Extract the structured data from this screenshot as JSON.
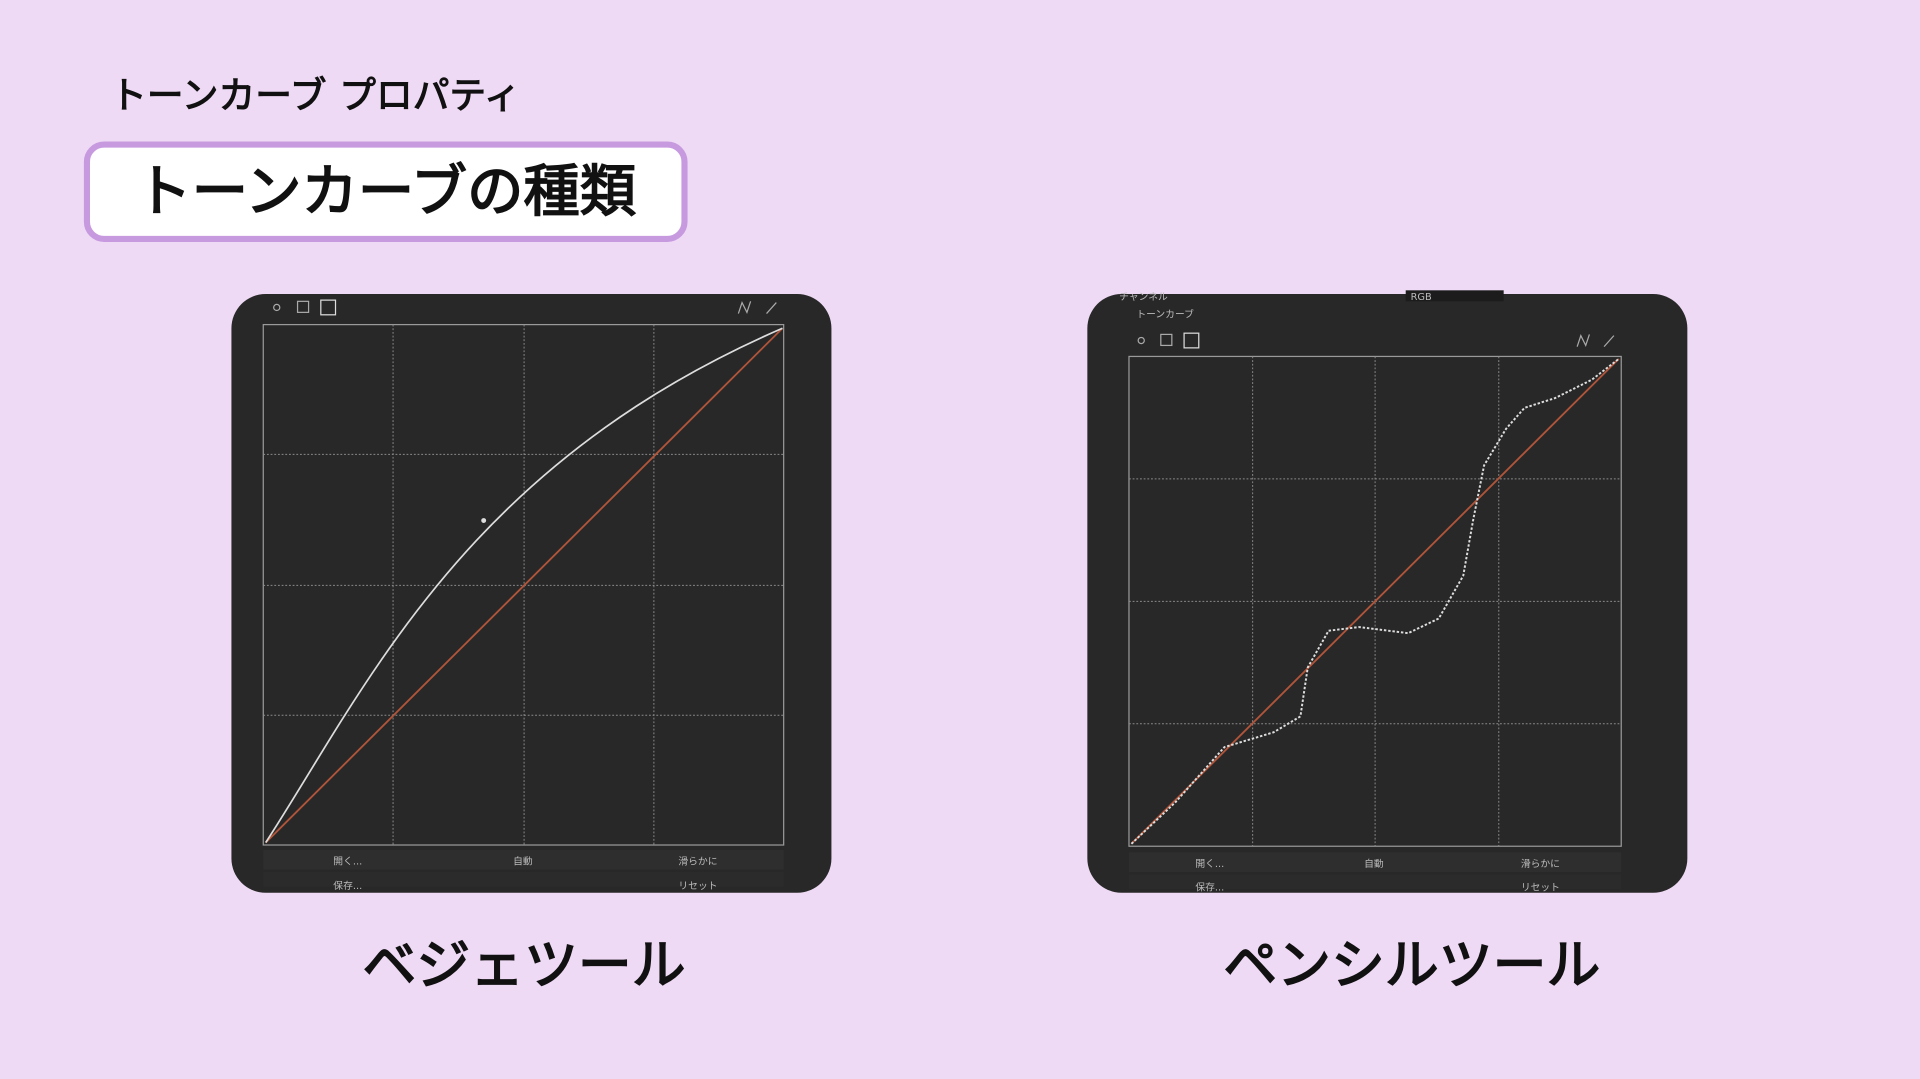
{
  "header": {
    "subtitle": "トーンカーブ プロパティ",
    "title": "トーンカーブの種類"
  },
  "panels": [
    {
      "label": "ベジェツール",
      "buttons": [
        "開く...",
        "自動",
        "滑らかに",
        "保存...",
        "リセット"
      ]
    },
    {
      "label": "ペンシルツール",
      "channel": "チャンネル",
      "channel_value": "RGB",
      "layer": "トーンカーブ",
      "buttons": [
        "開く...",
        "自動",
        "滑らかに",
        "保存...",
        "リセット"
      ]
    }
  ]
}
